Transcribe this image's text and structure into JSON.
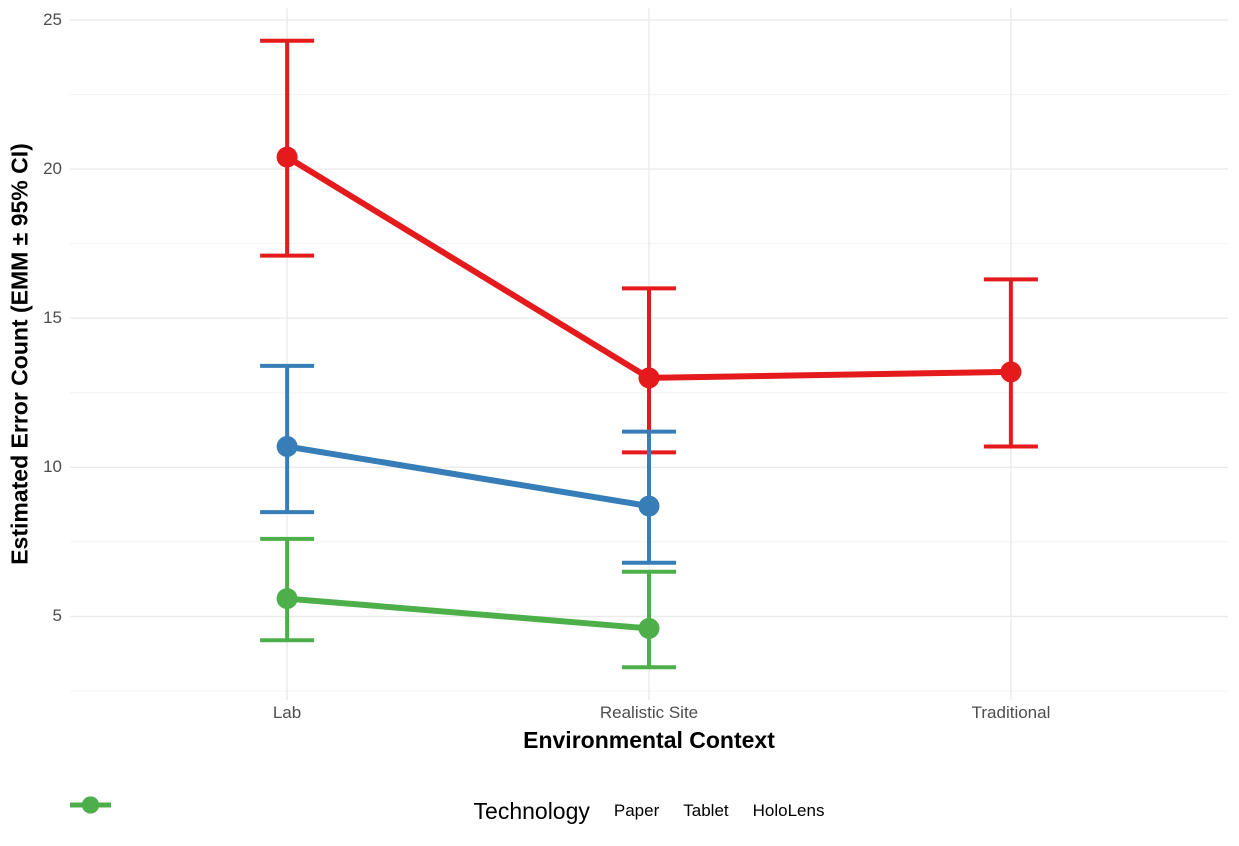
{
  "chart_data": {
    "type": "line",
    "title": "",
    "xlabel": "Environmental Context",
    "ylabel": "Estimated Error Count (EMM ± 95% CI)",
    "categories": [
      "Lab",
      "Realistic Site",
      "Traditional"
    ],
    "y_ticks": [
      5,
      10,
      15,
      20,
      25
    ],
    "y_minor_ticks": [
      2.5,
      7.5,
      12.5,
      17.5,
      22.5
    ],
    "ylim": [
      2.2,
      25.4
    ],
    "grid": "horizontal major+minor, vertical major at categories",
    "legend_position": "bottom",
    "legend_title": "Technology",
    "series": [
      {
        "name": "Paper",
        "color": "#E41A1C",
        "points": [
          {
            "category": "Lab",
            "mean": 20.4,
            "ci_low": 17.1,
            "ci_high": 24.3
          },
          {
            "category": "Realistic Site",
            "mean": 13.0,
            "ci_low": 10.5,
            "ci_high": 16.0
          },
          {
            "category": "Traditional",
            "mean": 13.2,
            "ci_low": 10.7,
            "ci_high": 16.3
          }
        ]
      },
      {
        "name": "Tablet",
        "color": "#377EB8",
        "points": [
          {
            "category": "Lab",
            "mean": 10.7,
            "ci_low": 8.5,
            "ci_high": 13.4
          },
          {
            "category": "Realistic Site",
            "mean": 8.7,
            "ci_low": 6.8,
            "ci_high": 11.2
          }
        ]
      },
      {
        "name": "HoloLens",
        "color": "#4DAF4A",
        "points": [
          {
            "category": "Lab",
            "mean": 5.6,
            "ci_low": 4.2,
            "ci_high": 7.6
          },
          {
            "category": "Realistic Site",
            "mean": 4.6,
            "ci_low": 3.3,
            "ci_high": 6.5
          }
        ]
      }
    ],
    "colors": {
      "background": "#FFFFFF",
      "grid_major": "#EBEBEB",
      "grid_minor": "#F4F4F4",
      "tick_text": "#4D4D4D",
      "title_text": "#000000"
    }
  }
}
